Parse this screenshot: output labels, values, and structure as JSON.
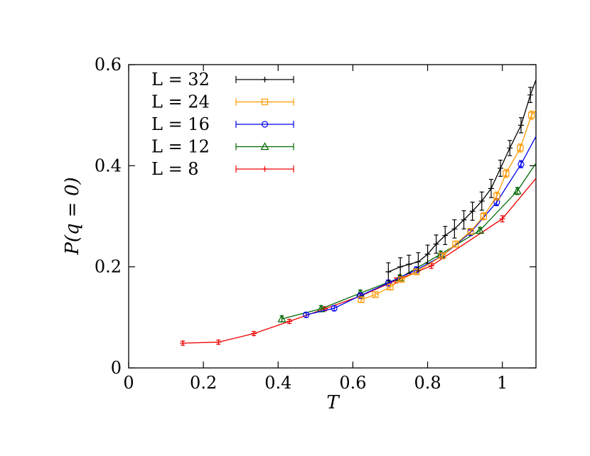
{
  "chart_data": {
    "type": "line",
    "xlabel": "T",
    "ylabel": "P(q = 0)",
    "xlim": [
      0,
      1.09
    ],
    "ylim": [
      0,
      0.6
    ],
    "xticks": [
      0,
      0.2,
      0.4,
      0.6,
      0.8,
      1
    ],
    "xtick_labels": [
      "0",
      "0.2",
      "0.4",
      "0.6",
      "0.8",
      "1"
    ],
    "yticks": [
      0,
      0.2,
      0.4,
      0.6
    ],
    "ytick_labels": [
      "0",
      "0.2",
      "0.4",
      "0.6"
    ],
    "legend_position": "top-left",
    "series": [
      {
        "name": "L = 32",
        "color": "#000000",
        "marker": "plus",
        "x": [
          0.695,
          0.727,
          0.75,
          0.775,
          0.8,
          0.823,
          0.847,
          0.872,
          0.897,
          0.92,
          0.945,
          0.97,
          0.995,
          1.02,
          1.05,
          1.075,
          1.09
        ],
        "y": [
          0.19,
          0.2,
          0.205,
          0.21,
          0.225,
          0.245,
          0.262,
          0.275,
          0.293,
          0.31,
          0.33,
          0.355,
          0.395,
          0.435,
          0.48,
          0.54,
          0.57
        ],
        "err": [
          0.018,
          0.018,
          0.018,
          0.018,
          0.018,
          0.018,
          0.018,
          0.018,
          0.018,
          0.018,
          0.018,
          0.018,
          0.016,
          0.015,
          0.015,
          0.015,
          0.0
        ]
      },
      {
        "name": "L = 24",
        "color": "#ff9900",
        "marker": "square",
        "x": [
          0.622,
          0.66,
          0.7,
          0.73,
          0.77,
          0.84,
          0.875,
          0.915,
          0.95,
          0.985,
          1.01,
          1.048,
          1.078,
          1.09
        ],
        "y": [
          0.135,
          0.145,
          0.16,
          0.175,
          0.19,
          0.222,
          0.245,
          0.27,
          0.3,
          0.34,
          0.385,
          0.435,
          0.5,
          0.51
        ],
        "err": [
          0.005,
          0.005,
          0.005,
          0.005,
          0.005,
          0.005,
          0.006,
          0.006,
          0.007,
          0.008,
          0.008,
          0.008,
          0.008,
          0.0
        ]
      },
      {
        "name": "L = 16",
        "color": "#0000ee",
        "marker": "circle",
        "x": [
          0.475,
          0.55,
          0.62,
          0.695,
          0.77,
          0.84,
          0.915,
          0.985,
          1.05,
          1.09
        ],
        "y": [
          0.105,
          0.118,
          0.143,
          0.168,
          0.194,
          0.222,
          0.268,
          0.328,
          0.403,
          0.458
        ],
        "err": [
          0.005,
          0.005,
          0.005,
          0.006,
          0.006,
          0.006,
          0.006,
          0.007,
          0.007,
          0.0
        ]
      },
      {
        "name": "L = 12",
        "color": "#006600",
        "marker": "triangle",
        "x": [
          0.41,
          0.515,
          0.62,
          0.725,
          0.835,
          0.94,
          1.04,
          1.09
        ],
        "y": [
          0.097,
          0.117,
          0.148,
          0.178,
          0.225,
          0.272,
          0.35,
          0.405
        ],
        "err": [
          0.006,
          0.006,
          0.006,
          0.006,
          0.006,
          0.006,
          0.007,
          0.0
        ]
      },
      {
        "name": "L = 8",
        "color": "#ee0000",
        "marker": "plus",
        "x": [
          0.145,
          0.24,
          0.335,
          0.43,
          0.525,
          0.62,
          0.715,
          0.81,
          1.0,
          1.09
        ],
        "y": [
          0.049,
          0.051,
          0.068,
          0.092,
          0.117,
          0.142,
          0.173,
          0.202,
          0.295,
          0.375
        ],
        "err": [
          0.004,
          0.004,
          0.004,
          0.004,
          0.004,
          0.004,
          0.005,
          0.005,
          0.006,
          0.0
        ]
      }
    ]
  }
}
